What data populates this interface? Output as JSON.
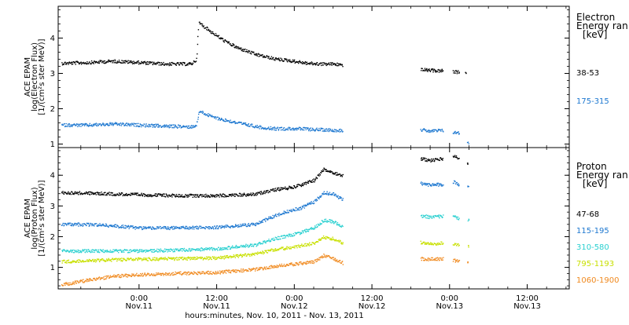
{
  "chart_data": {
    "type": "scatter",
    "x_axis": {
      "label": "hours:minutes, Nov. 10, 2011 - Nov. 13, 2011",
      "range_hours": [
        -12.5,
        66.5
      ],
      "ticks": [
        {
          "h": 0,
          "time": "0:00",
          "date": "Nov.11"
        },
        {
          "h": 12,
          "time": "12:00",
          "date": "Nov.11"
        },
        {
          "h": 24,
          "time": "0:00",
          "date": "Nov.12"
        },
        {
          "h": 36,
          "time": "12:00",
          "date": "Nov.12"
        },
        {
          "h": 48,
          "time": "0:00",
          "date": "Nov.13"
        },
        {
          "h": 60,
          "time": "12:00",
          "date": "Nov.13"
        }
      ]
    },
    "panels": [
      {
        "id": "electron",
        "ylabel": [
          "ACE EPAM",
          "log(Electron Flux)",
          "[1/(cm²s ster MeV)]"
        ],
        "ylim": [
          0.9,
          4.9
        ],
        "yticks": [
          1,
          2,
          3,
          4
        ],
        "legend_title": [
          "Electron",
          "Energy ran",
          "[keV]"
        ],
        "series": [
          {
            "name": "38-53",
            "color": "#000000",
            "segments": [
              [
                [
                  -12,
                  3.3
                ],
                [
                  -8,
                  3.32
                ],
                [
                  -4,
                  3.36
                ],
                [
                  0,
                  3.32
                ],
                [
                  4,
                  3.28
                ],
                [
                  8,
                  3.28
                ],
                [
                  8.8,
                  3.4
                ],
                [
                  9.2,
                  4.45
                ],
                [
                  11,
                  4.2
                ],
                [
                  13,
                  3.95
                ],
                [
                  15,
                  3.75
                ],
                [
                  18,
                  3.55
                ],
                [
                  21,
                  3.42
                ],
                [
                  23,
                  3.38
                ],
                [
                  24.5,
                  3.34
                ],
                [
                  26,
                  3.3
                ],
                [
                  28,
                  3.28
                ],
                [
                  30,
                  3.28
                ],
                [
                  31.5,
                  3.25
                ]
              ],
              [
                [
                  43.5,
                  3.12
                ],
                [
                  45,
                  3.1
                ],
                [
                  46.5,
                  3.08
                ],
                [
                  47,
                  3.1
                ]
              ],
              [
                [
                  48.5,
                  3.05
                ],
                [
                  49.5,
                  3.05
                ]
              ],
              [
                [
                  50.5,
                  3.02
                ]
              ]
            ]
          },
          {
            "name": "175-315",
            "color": "#1e78d0",
            "segments": [
              [
                [
                  -12,
                  1.55
                ],
                [
                  -8,
                  1.55
                ],
                [
                  -4,
                  1.58
                ],
                [
                  0,
                  1.55
                ],
                [
                  4,
                  1.52
                ],
                [
                  8,
                  1.5
                ],
                [
                  8.8,
                  1.55
                ],
                [
                  9.3,
                  1.95
                ],
                [
                  11,
                  1.8
                ],
                [
                  13,
                  1.7
                ],
                [
                  16,
                  1.58
                ],
                [
                  19,
                  1.48
                ],
                [
                  21,
                  1.45
                ],
                [
                  24,
                  1.45
                ],
                [
                  28,
                  1.42
                ],
                [
                  31.5,
                  1.4
                ]
              ],
              [
                [
                  43.5,
                  1.42
                ],
                [
                  45,
                  1.38
                ],
                [
                  47,
                  1.4
                ]
              ],
              [
                [
                  48.5,
                  1.35
                ],
                [
                  49.5,
                  1.32
                ]
              ],
              [
                [
                  50.8,
                  1.05
                ]
              ]
            ]
          }
        ]
      },
      {
        "id": "proton",
        "ylabel": [
          "ACE EPAM",
          "log(Proton Flux)",
          "[1/(cm²s ster MeV)]"
        ],
        "ylim": [
          0.3,
          4.9
        ],
        "yticks": [
          1,
          2,
          3,
          4
        ],
        "legend_title": [
          "Proton",
          "Energy ran",
          "[keV]"
        ],
        "series": [
          {
            "name": "47-68",
            "color": "#000000",
            "segments": [
              [
                [
                  -12,
                  3.45
                ],
                [
                  -6,
                  3.42
                ],
                [
                  0,
                  3.38
                ],
                [
                  6,
                  3.35
                ],
                [
                  12,
                  3.35
                ],
                [
                  18,
                  3.4
                ],
                [
                  21,
                  3.55
                ],
                [
                  23,
                  3.6
                ],
                [
                  25,
                  3.7
                ],
                [
                  27,
                  3.85
                ],
                [
                  28.5,
                  4.2
                ],
                [
                  30,
                  4.1
                ],
                [
                  31.5,
                  4.0
                ]
              ],
              [
                [
                  43.5,
                  4.55
                ],
                [
                  45,
                  4.5
                ],
                [
                  47,
                  4.55
                ]
              ],
              [
                [
                  48.5,
                  4.65
                ],
                [
                  49.5,
                  4.55
                ]
              ],
              [
                [
                  50.8,
                  4.4
                ]
              ]
            ]
          },
          {
            "name": "115-195",
            "color": "#1e78d0",
            "segments": [
              [
                [
                  -12,
                  2.42
                ],
                [
                  -6,
                  2.4
                ],
                [
                  0,
                  2.3
                ],
                [
                  6,
                  2.3
                ],
                [
                  12,
                  2.32
                ],
                [
                  18,
                  2.42
                ],
                [
                  21,
                  2.7
                ],
                [
                  23,
                  2.85
                ],
                [
                  25,
                  2.95
                ],
                [
                  27,
                  3.15
                ],
                [
                  28.5,
                  3.45
                ],
                [
                  30,
                  3.4
                ],
                [
                  31.5,
                  3.2
                ]
              ],
              [
                [
                  43.5,
                  3.75
                ],
                [
                  45,
                  3.7
                ],
                [
                  47,
                  3.72
                ]
              ],
              [
                [
                  48.5,
                  3.8
                ],
                [
                  49.5,
                  3.7
                ]
              ],
              [
                [
                  50.8,
                  3.65
                ]
              ]
            ]
          },
          {
            "name": "310-580",
            "color": "#2ad0d0",
            "segments": [
              [
                [
                  -12,
                  1.55
                ],
                [
                  -6,
                  1.55
                ],
                [
                  0,
                  1.55
                ],
                [
                  6,
                  1.58
                ],
                [
                  12,
                  1.62
                ],
                [
                  18,
                  1.75
                ],
                [
                  21,
                  1.95
                ],
                [
                  23,
                  2.05
                ],
                [
                  25,
                  2.15
                ],
                [
                  27,
                  2.3
                ],
                [
                  28.5,
                  2.55
                ],
                [
                  30,
                  2.5
                ],
                [
                  31.5,
                  2.35
                ]
              ],
              [
                [
                  43.5,
                  2.7
                ],
                [
                  45,
                  2.65
                ],
                [
                  47,
                  2.68
                ]
              ],
              [
                [
                  48.5,
                  2.7
                ],
                [
                  49.5,
                  2.6
                ]
              ],
              [
                [
                  50.8,
                  2.55
                ]
              ]
            ]
          },
          {
            "name": "795-1193",
            "color": "#c8e000",
            "segments": [
              [
                [
                  -12,
                  1.2
                ],
                [
                  -6,
                  1.25
                ],
                [
                  0,
                  1.28
                ],
                [
                  6,
                  1.3
                ],
                [
                  12,
                  1.32
                ],
                [
                  18,
                  1.45
                ],
                [
                  21,
                  1.6
                ],
                [
                  23,
                  1.65
                ],
                [
                  25,
                  1.72
                ],
                [
                  27,
                  1.8
                ],
                [
                  28.5,
                  2.0
                ],
                [
                  30,
                  1.95
                ],
                [
                  31.5,
                  1.8
                ]
              ],
              [
                [
                  43.5,
                  1.82
                ],
                [
                  45,
                  1.78
                ],
                [
                  47,
                  1.8
                ]
              ],
              [
                [
                  48.5,
                  1.8
                ],
                [
                  49.5,
                  1.75
                ]
              ],
              [
                [
                  50.8,
                  1.7
                ]
              ]
            ]
          },
          {
            "name": "1060-1900",
            "color": "#f08a20",
            "segments": [
              [
                [
                  -12,
                  0.45
                ],
                [
                  -8,
                  0.6
                ],
                [
                  -4,
                  0.72
                ],
                [
                  0,
                  0.78
                ],
                [
                  6,
                  0.82
                ],
                [
                  12,
                  0.85
                ],
                [
                  18,
                  0.95
                ],
                [
                  21,
                  1.05
                ],
                [
                  23,
                  1.1
                ],
                [
                  25,
                  1.15
                ],
                [
                  27,
                  1.2
                ],
                [
                  28.5,
                  1.4
                ],
                [
                  30,
                  1.3
                ],
                [
                  31.5,
                  1.15
                ]
              ],
              [
                [
                  43.5,
                  1.3
                ],
                [
                  45,
                  1.28
                ],
                [
                  47,
                  1.3
                ]
              ],
              [
                [
                  48.5,
                  1.25
                ],
                [
                  49.5,
                  1.2
                ]
              ],
              [
                [
                  50.8,
                  1.18
                ]
              ]
            ]
          }
        ]
      }
    ]
  }
}
